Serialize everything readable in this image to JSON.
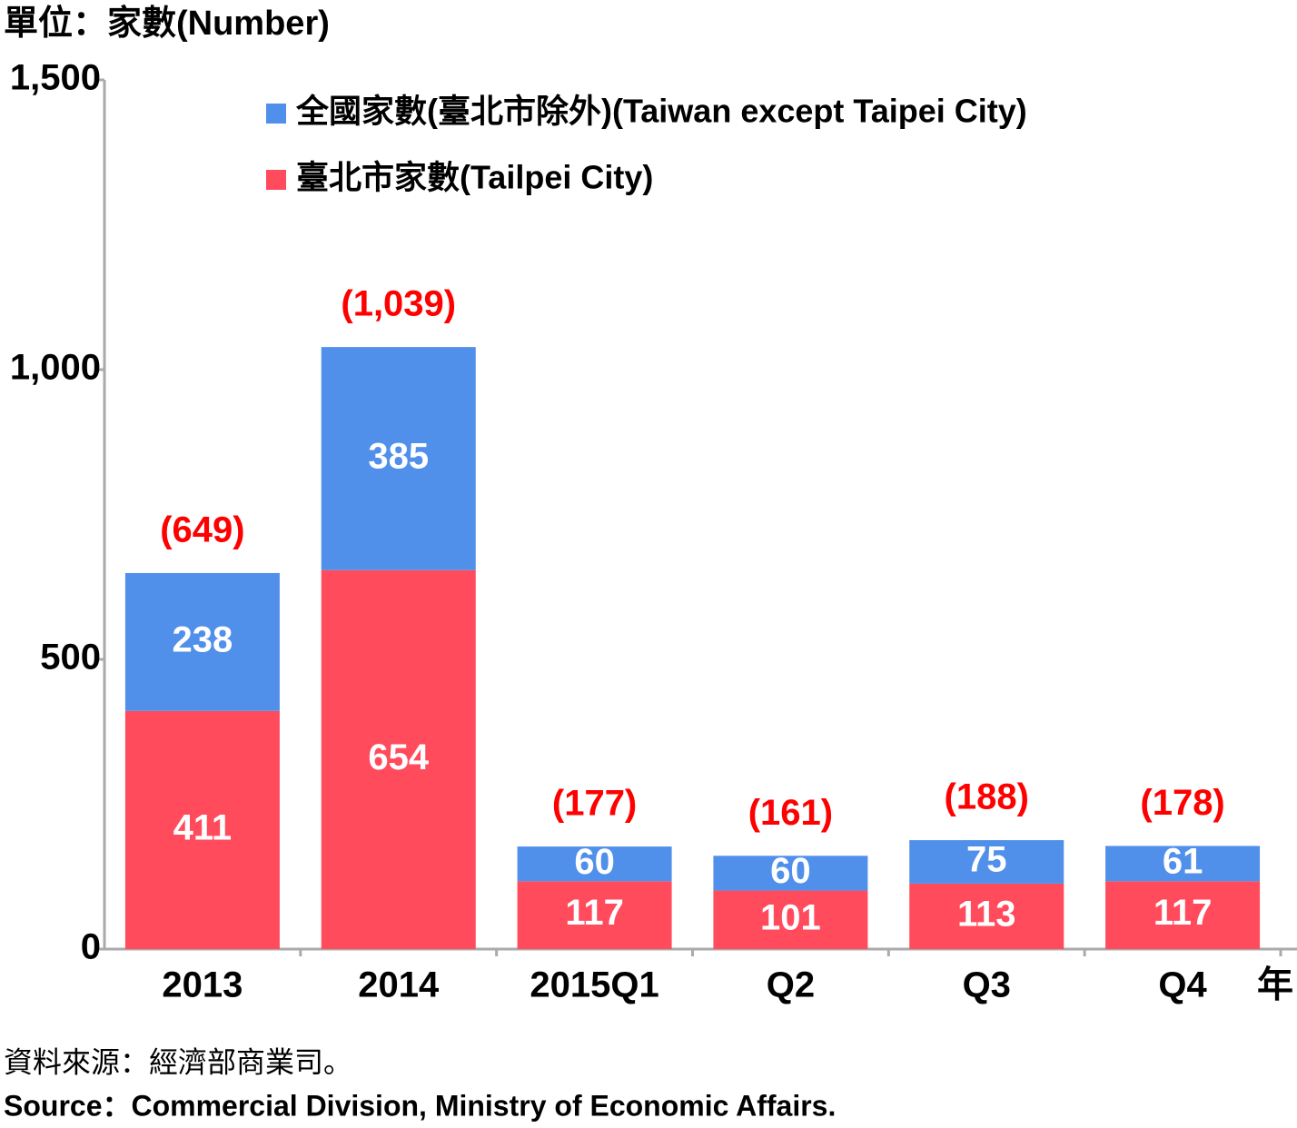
{
  "chart_data": {
    "type": "stacked_bar",
    "unit_label": "單位：家數(Number)",
    "categories": [
      "2013",
      "2014",
      "2015Q1",
      "Q2",
      "Q3",
      "Q4"
    ],
    "x_suffix": "年",
    "series": [
      {
        "name": "臺北市家數(Tailpei City)",
        "color": "#ff4b5c",
        "values": [
          411,
          654,
          117,
          101,
          113,
          117
        ]
      },
      {
        "name": "全國家數(臺北市除外)(Taiwan except Taipei City)",
        "color": "#5090ea",
        "values": [
          238,
          385,
          60,
          60,
          75,
          61
        ]
      }
    ],
    "totals": {
      "color": "#ff0000",
      "values": [
        649,
        1039,
        177,
        161,
        188,
        178
      ],
      "value_labels": [
        "(649)",
        "(1,039)",
        "(177)",
        "(161)",
        "(188)",
        "(178)"
      ]
    },
    "ylim": [
      0,
      1500
    ],
    "yticks": [
      0,
      500,
      {
        "value": 1000,
        "label": "1,000"
      },
      {
        "value": 1500,
        "label": "1,500"
      }
    ],
    "source": [
      "資料來源：經濟部商業司。",
      "Source：Commercial Division, Ministry of Economic Affairs."
    ]
  }
}
